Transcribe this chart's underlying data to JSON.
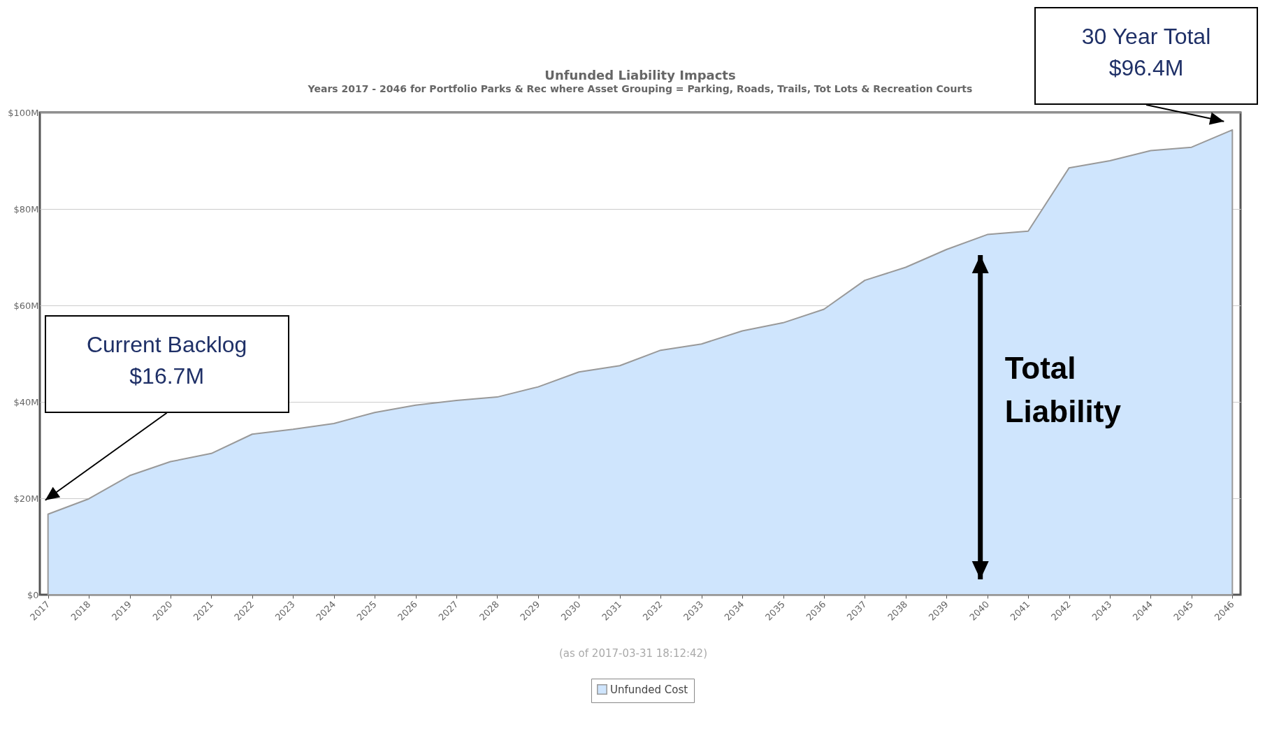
{
  "chart_data": {
    "type": "area",
    "title": "Unfunded Liability Impacts",
    "subtitle": "Years 2017 - 2046 for Portfolio Parks & Rec where Asset Grouping =  Parking, Roads, Trails, Tot Lots & Recreation Courts",
    "categories": [
      "2017",
      "2018",
      "2019",
      "2020",
      "2021",
      "2022",
      "2023",
      "2024",
      "2025",
      "2026",
      "2027",
      "2028",
      "2029",
      "2030",
      "2031",
      "2032",
      "2033",
      "2034",
      "2035",
      "2036",
      "2037",
      "2038",
      "2039",
      "2040",
      "2041",
      "2042",
      "2043",
      "2044",
      "2045",
      "2046"
    ],
    "series": [
      {
        "name": "Unfunded Cost",
        "color": "#cfe5fd",
        "values": [
          16.7,
          19.9,
          24.7,
          27.6,
          29.3,
          33.3,
          34.3,
          35.5,
          37.8,
          39.3,
          40.3,
          41.0,
          43.1,
          46.2,
          47.5,
          50.7,
          52.0,
          54.7,
          56.4,
          59.2,
          65.2,
          67.9,
          71.6,
          74.7,
          75.4,
          88.5,
          90.0,
          92.1,
          92.8,
          96.4
        ]
      }
    ],
    "ylim": [
      0,
      100
    ],
    "yticks": [
      {
        "value": 0,
        "label": "$0"
      },
      {
        "value": 20,
        "label": "$20M"
      },
      {
        "value": 40,
        "label": "$40M"
      },
      {
        "value": 60,
        "label": "$60M"
      },
      {
        "value": 80,
        "label": "$80M"
      },
      {
        "value": 100,
        "label": "$100M"
      }
    ],
    "grid": "y",
    "legend": "bottom",
    "annotations": [
      "Current Backlog\n$16.7M",
      "30 Year Total\n$96.4M",
      "Total Liability",
      "(as of 2017-03-31 18:12:42)"
    ]
  }
}
